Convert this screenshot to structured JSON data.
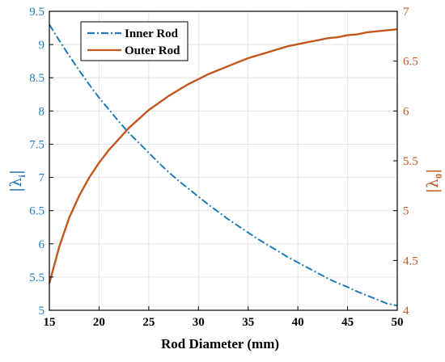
{
  "chart_data": {
    "type": "line",
    "xlabel": "Rod Diameter (mm)",
    "ylabel_left": {
      "symbol": "λ",
      "subscript": "i"
    },
    "ylabel_right": {
      "symbol": "λ",
      "subscript": "0"
    },
    "xlim": [
      15,
      50
    ],
    "ylim_left": [
      5,
      9.5
    ],
    "ylim_right": [
      4,
      7
    ],
    "x_ticks": [
      "15",
      "20",
      "25",
      "30",
      "35",
      "40",
      "45",
      "50"
    ],
    "y_left_ticks": [
      "5",
      "5.5",
      "6",
      "6.5",
      "7",
      "7.5",
      "8",
      "8.5",
      "9",
      "9.5"
    ],
    "y_right_ticks": [
      "4",
      "4.5",
      "5",
      "5.5",
      "6",
      "6.5",
      "7"
    ],
    "grid": true,
    "legend_position": "top-left",
    "colors": {
      "inner": "#1f7ab8",
      "outer": "#c2571e",
      "grid": "#e3e3e3"
    },
    "series": [
      {
        "name": "Inner Rod",
        "axis": "left",
        "style": "dash-dot",
        "x": [
          15,
          16,
          17,
          18,
          19,
          20,
          21,
          22,
          23,
          24,
          25,
          26,
          27,
          28,
          29,
          30,
          31,
          32,
          33,
          34,
          35,
          36,
          37,
          38,
          39,
          40,
          41,
          42,
          43,
          44,
          45,
          46,
          47,
          48,
          49,
          50
        ],
        "values": [
          9.3,
          9.06,
          8.83,
          8.61,
          8.4,
          8.2,
          8.02,
          7.84,
          7.67,
          7.52,
          7.37,
          7.22,
          7.08,
          6.95,
          6.83,
          6.71,
          6.59,
          6.48,
          6.37,
          6.27,
          6.17,
          6.07,
          5.98,
          5.89,
          5.8,
          5.72,
          5.64,
          5.56,
          5.48,
          5.41,
          5.35,
          5.28,
          5.22,
          5.16,
          5.1,
          5.07
        ]
      },
      {
        "name": "Outer Rod",
        "axis": "right",
        "style": "solid",
        "x": [
          15,
          16,
          17,
          18,
          19,
          20,
          21,
          22,
          23,
          24,
          25,
          26,
          27,
          28,
          29,
          30,
          31,
          32,
          33,
          34,
          35,
          36,
          37,
          38,
          39,
          40,
          41,
          42,
          43,
          44,
          45,
          46,
          47,
          48,
          49,
          50
        ],
        "values": [
          4.27,
          4.64,
          4.93,
          5.15,
          5.33,
          5.48,
          5.61,
          5.72,
          5.83,
          5.92,
          6.01,
          6.08,
          6.15,
          6.21,
          6.27,
          6.32,
          6.37,
          6.41,
          6.45,
          6.49,
          6.53,
          6.56,
          6.59,
          6.62,
          6.65,
          6.67,
          6.69,
          6.71,
          6.73,
          6.74,
          6.76,
          6.77,
          6.79,
          6.8,
          6.81,
          6.82
        ]
      }
    ]
  }
}
